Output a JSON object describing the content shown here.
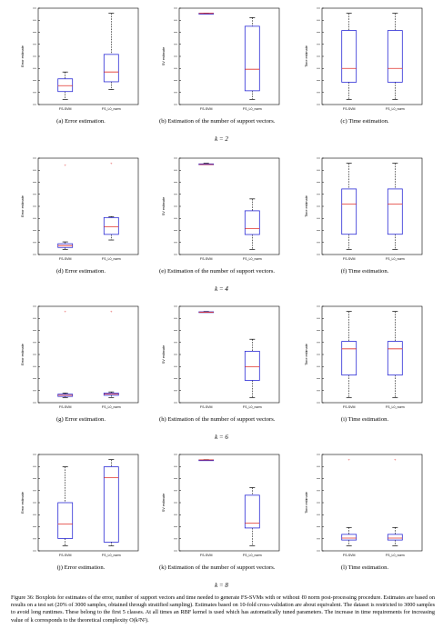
{
  "rows": [
    {
      "k_label": "k = 2",
      "plots": [
        {
          "caption": "(a) Error estimation.",
          "chart_data": {
            "type": "box",
            "categories": [
              "FS-SVM",
              "FS_L0_norm"
            ],
            "ylabel": "Error estimate",
            "series": [
              {
                "min": 0.062,
                "q1": 0.07,
                "median": 0.076,
                "q3": 0.083,
                "max": 0.09,
                "outliers": []
              },
              {
                "min": 0.072,
                "q1": 0.08,
                "median": 0.09,
                "q3": 0.108,
                "max": 0.15,
                "outliers": []
              }
            ]
          }
        },
        {
          "caption": "(b) Estimation of the number of support vectors.",
          "chart_data": {
            "type": "box",
            "categories": [
              "FS-SVM",
              "FS_L0_norm"
            ],
            "ylabel": "SV estimate",
            "series": [
              {
                "min": 150,
                "q1": 150,
                "median": 150,
                "q3": 150,
                "max": 150,
                "outliers": []
              },
              {
                "min": 50,
                "q1": 60,
                "median": 85,
                "q3": 135,
                "max": 145,
                "outliers": []
              }
            ]
          }
        },
        {
          "caption": "(c) Time estimation.",
          "chart_data": {
            "type": "box",
            "categories": [
              "FS-SVM",
              "FS_L0_norm"
            ],
            "ylabel": "Time estimate",
            "series": [
              {
                "min": 0.1,
                "q1": 0.2,
                "median": 0.28,
                "q3": 0.5,
                "max": 0.6,
                "outliers": []
              },
              {
                "min": 0.1,
                "q1": 0.2,
                "median": 0.28,
                "q3": 0.5,
                "max": 0.6,
                "outliers": []
              }
            ]
          }
        }
      ]
    },
    {
      "k_label": "k = 4",
      "plots": [
        {
          "caption": "(d) Error estimation.",
          "chart_data": {
            "type": "box",
            "categories": [
              "FS-SVM",
              "FS_L0_norm"
            ],
            "ylabel": "Error estimate",
            "series": [
              {
                "min": 0.02,
                "q1": 0.022,
                "median": 0.024,
                "q3": 0.026,
                "max": 0.028,
                "outliers": [
                  0.11
                ]
              },
              {
                "min": 0.03,
                "q1": 0.036,
                "median": 0.044,
                "q3": 0.054,
                "max": 0.055,
                "outliers": [
                  0.112
                ]
              }
            ]
          }
        },
        {
          "caption": "(e) Estimation of the number of support vectors.",
          "chart_data": {
            "type": "box",
            "categories": [
              "FS-SVM",
              "FS_L0_norm"
            ],
            "ylabel": "SV estimate",
            "series": [
              {
                "min": 298,
                "q1": 298,
                "median": 298,
                "q3": 299,
                "max": 300,
                "outliers": []
              },
              {
                "min": 155,
                "q1": 180,
                "median": 190,
                "q3": 220,
                "max": 240,
                "outliers": []
              }
            ]
          }
        },
        {
          "caption": "(f) Time estimation.",
          "chart_data": {
            "type": "box",
            "categories": [
              "FS-SVM",
              "FS_L0_norm"
            ],
            "ylabel": "Time estimate",
            "series": [
              {
                "min": 0.35,
                "q1": 0.45,
                "median": 0.65,
                "q3": 0.75,
                "max": 0.92,
                "outliers": []
              },
              {
                "min": 0.35,
                "q1": 0.45,
                "median": 0.65,
                "q3": 0.75,
                "max": 0.92,
                "outliers": []
              }
            ]
          }
        }
      ]
    },
    {
      "k_label": "k = 6",
      "plots": [
        {
          "caption": "(g) Error estimation.",
          "chart_data": {
            "type": "box",
            "categories": [
              "FS-SVM",
              "FS_L0_norm"
            ],
            "ylabel": "Error estimate",
            "series": [
              {
                "min": 0.008,
                "q1": 0.009,
                "median": 0.01,
                "q3": 0.011,
                "max": 0.012,
                "outliers": [
                  0.085
                ]
              },
              {
                "min": 0.008,
                "q1": 0.01,
                "median": 0.011,
                "q3": 0.012,
                "max": 0.013,
                "outliers": [
                  0.085
                ]
              }
            ]
          }
        },
        {
          "caption": "(h) Estimation of the number of support vectors.",
          "chart_data": {
            "type": "box",
            "categories": [
              "FS-SVM",
              "FS_L0_norm"
            ],
            "ylabel": "SV estimate",
            "series": [
              {
                "min": 449,
                "q1": 449,
                "median": 449,
                "q3": 450,
                "max": 451,
                "outliers": []
              },
              {
                "min": 200,
                "q1": 250,
                "median": 290,
                "q3": 335,
                "max": 370,
                "outliers": []
              }
            ]
          }
        },
        {
          "caption": "(i) Time estimation.",
          "chart_data": {
            "type": "box",
            "categories": [
              "FS-SVM",
              "FS_L0_norm"
            ],
            "ylabel": "Time estimate",
            "series": [
              {
                "min": 0.6,
                "q1": 0.9,
                "median": 1.25,
                "q3": 1.35,
                "max": 1.75,
                "outliers": []
              },
              {
                "min": 0.6,
                "q1": 0.9,
                "median": 1.25,
                "q3": 1.35,
                "max": 1.75,
                "outliers": []
              }
            ]
          }
        }
      ]
    },
    {
      "k_label": "k = 8",
      "plots": [
        {
          "caption": "(j) Error estimation.",
          "chart_data": {
            "type": "box",
            "categories": [
              "FS-SVM",
              "FS_L0_norm"
            ],
            "ylabel": "Error estimate",
            "series": [
              {
                "min": 0.01,
                "q1": 0.012,
                "median": 0.016,
                "q3": 0.022,
                "max": 0.032,
                "outliers": []
              },
              {
                "min": 0.01,
                "q1": 0.011,
                "median": 0.029,
                "q3": 0.032,
                "max": 0.034,
                "outliers": []
              }
            ]
          }
        },
        {
          "caption": "(k) Estimation of the number of support vectors.",
          "chart_data": {
            "type": "box",
            "categories": [
              "FS-SVM",
              "FS_L0_norm"
            ],
            "ylabel": "SV estimate",
            "series": [
              {
                "min": 600,
                "q1": 600,
                "median": 600,
                "q3": 600,
                "max": 601,
                "outliers": []
              },
              {
                "min": 260,
                "q1": 330,
                "median": 350,
                "q3": 460,
                "max": 490,
                "outliers": []
              }
            ]
          }
        },
        {
          "caption": "(l) Time estimation.",
          "chart_data": {
            "type": "box",
            "categories": [
              "FS-SVM",
              "FS_L0_norm"
            ],
            "ylabel": "Time estimate",
            "series": [
              {
                "min": 1.5,
                "q1": 2.4,
                "median": 2.7,
                "q3": 3.3,
                "max": 4.4,
                "outliers": [
                  15.2
                ]
              },
              {
                "min": 1.5,
                "q1": 2.4,
                "median": 2.7,
                "q3": 3.3,
                "max": 4.4,
                "outliers": [
                  15.2
                ]
              }
            ]
          }
        }
      ]
    }
  ],
  "figure_caption": "Figure 36: Boxplots for estimates of the error, number of support vectors and time needed to generate FS-SVMs with or without ℓ0 norm post-processing procedure. Estimates are based on results on a test set (20% of 3000 samples, obtained through stratified sampling). Estimates based on 10-fold cross-validation are about equivalent. The dataset is restricted to 3000 samples to avoid long runtimes. These belong to the first 5 classes. At all times an RBF kernel is used which has automatically tuned parameters. The increase in time requirements for increasing value of k corresponds to the theoretical complexity O(k²N²)."
}
